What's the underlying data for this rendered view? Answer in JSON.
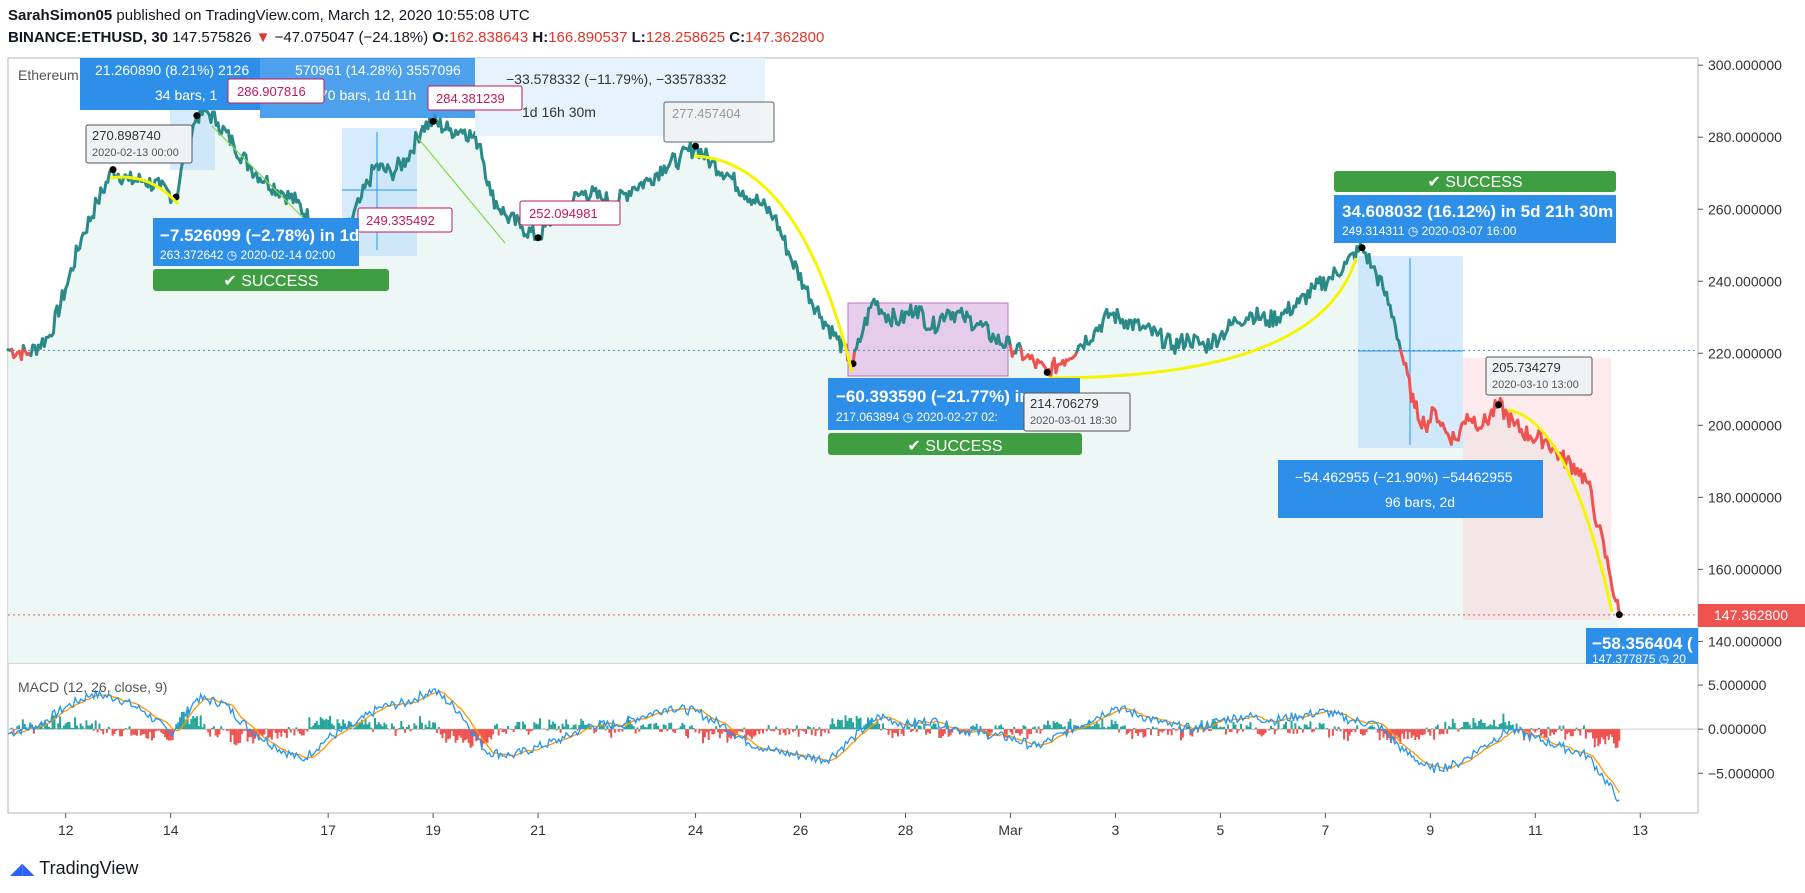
{
  "header": {
    "author": "SarahSimon05",
    "published": "published on TradingView.com, March 12, 2020 10:55:08 UTC",
    "symbol": "BINANCE:ETHUSD, 30",
    "last": "147.575826",
    "change": "−47.075047 (−24.18%)",
    "o_label": "O:",
    "o": "162.838643",
    "h_label": "H:",
    "h": "166.890537",
    "l_label": "L:",
    "l": "128.258625",
    "c_label": "C:",
    "c": "147.362800"
  },
  "pane_title": "Ethereum / U.S. Dollar, 30, BINANCE",
  "macd_label": "MACD (12, 26, close, 9)",
  "price_tag": "147.362800",
  "footer": {
    "brand": "TradingView"
  },
  "colors": {
    "price_up": "#26a69a",
    "price_down": "#ef5350",
    "price_line": "#2a8a88",
    "area_fill": "#e8f5f2",
    "macd_line": "#2196f3",
    "signal_line": "#ff9800",
    "success": "#3f9e41",
    "info_box": "#2e8fe8",
    "arrow": "#f5f500",
    "label_pink": "#c2185b"
  },
  "annotations": {
    "top_box1": "21.260890 (8.21%) 2126",
    "top_box1_sub": "34 bars, 1",
    "top_box2": "570961 (14.28%) 3557096",
    "top_box2_sub": "70 bars, 1d 11h",
    "top_box3": "−33.578332 (−11.79%), −33578332",
    "top_box3_sub": "1d 16h 30m",
    "lbl_270": "270.898740",
    "lbl_270_date": "2020-02-13 00:00",
    "lbl_286": "286.907816",
    "lbl_284": "284.381239",
    "lbl_249": "249.335492",
    "lbl_252": "252.094981",
    "lbl_277": "277.457404",
    "box1_main": "−7.526099 (−2.78%) in 1d",
    "box1_sub": "263.372642 ◷ 2020-02-14 02:00",
    "success": "✔ SUCCESS",
    "box2_main": "−60.393590 (−21.77%) in",
    "box2_sub": "217.063894 ◷ 2020-02-27 02:",
    "lbl_214": "214.706279",
    "lbl_214_date": "2020-03-01 18:30",
    "box3_main": "34.608032 (16.12%) in 5d 21h 30m",
    "box3_sub": "249.314311 ◷ 2020-03-07 16:00",
    "lbl_205": "205.734279",
    "lbl_205_date": "2020-03-10 13:00",
    "box4_main": "−54.462955 (−21.90%) −54462955",
    "box4_sub": "96 bars, 2d",
    "box5_main": "−58.356404 (",
    "box5_sub": "147.377875 ◷ 20"
  },
  "chart_data": {
    "type": "line",
    "y_ticks": [
      "300.000000",
      "280.000000",
      "260.000000",
      "240.000000",
      "220.000000",
      "200.000000",
      "180.000000",
      "160.000000",
      "140.000000"
    ],
    "y_tick_values": [
      300,
      280,
      260,
      240,
      220,
      200,
      180,
      160,
      140
    ],
    "ylim": [
      134,
      302
    ],
    "macd_ticks": [
      "5.000000",
      "0.000000",
      "−5.000000"
    ],
    "macd_tick_values": [
      5,
      0,
      -5
    ],
    "macd_ylim": [
      -9.5,
      7.5
    ],
    "x_ticks": [
      "12",
      "14",
      "17",
      "19",
      "21",
      "24",
      "26",
      "28",
      "Mar",
      "3",
      "5",
      "7",
      "9",
      "11",
      "13"
    ],
    "x_tick_pos": [
      2.0,
      4.0,
      7.0,
      9.0,
      11.0,
      14.0,
      16.0,
      18.0,
      20.0,
      22.0,
      24.0,
      26.0,
      28.0,
      30.0,
      32.0
    ],
    "xlim": [
      0.9,
      33.1
    ],
    "price_key_points": [
      [
        0.9,
        221
      ],
      [
        1.3,
        220
      ],
      [
        1.7,
        225
      ],
      [
        2.0,
        238
      ],
      [
        2.3,
        252
      ],
      [
        2.6,
        262
      ],
      [
        2.9,
        271
      ],
      [
        3.2,
        268
      ],
      [
        3.5,
        268
      ],
      [
        3.8,
        266
      ],
      [
        4.1,
        263.4
      ],
      [
        4.3,
        277
      ],
      [
        4.5,
        286
      ],
      [
        4.7,
        287
      ],
      [
        4.9,
        284
      ],
      [
        5.2,
        278
      ],
      [
        5.5,
        272
      ],
      [
        5.8,
        268
      ],
      [
        6.1,
        265
      ],
      [
        6.4,
        262
      ],
      [
        6.7,
        256
      ],
      [
        7.0,
        249.3
      ],
      [
        7.3,
        252
      ],
      [
        7.6,
        262
      ],
      [
        7.9,
        272
      ],
      [
        8.2,
        270
      ],
      [
        8.5,
        274
      ],
      [
        8.8,
        283
      ],
      [
        9.0,
        284.4
      ],
      [
        9.3,
        282
      ],
      [
        9.6,
        282
      ],
      [
        9.9,
        278
      ],
      [
        10.1,
        264
      ],
      [
        10.4,
        258
      ],
      [
        10.7,
        255
      ],
      [
        11.0,
        252.1
      ],
      [
        11.3,
        258
      ],
      [
        11.6,
        262
      ],
      [
        11.9,
        265
      ],
      [
        12.2,
        263
      ],
      [
        12.5,
        262
      ],
      [
        12.8,
        266
      ],
      [
        13.1,
        268
      ],
      [
        13.4,
        272
      ],
      [
        13.7,
        274
      ],
      [
        14.0,
        277.5
      ],
      [
        14.3,
        273
      ],
      [
        14.6,
        270
      ],
      [
        14.9,
        265
      ],
      [
        15.2,
        262
      ],
      [
        15.5,
        258
      ],
      [
        15.8,
        247
      ],
      [
        16.1,
        238
      ],
      [
        16.4,
        230
      ],
      [
        16.7,
        224
      ],
      [
        17.0,
        217.1
      ],
      [
        17.2,
        227
      ],
      [
        17.4,
        235
      ],
      [
        17.6,
        231
      ],
      [
        17.9,
        229
      ],
      [
        18.2,
        233
      ],
      [
        18.5,
        227
      ],
      [
        18.8,
        232
      ],
      [
        19.1,
        230
      ],
      [
        19.4,
        228
      ],
      [
        19.7,
        224
      ],
      [
        20.0,
        222
      ],
      [
        20.3,
        219
      ],
      [
        20.7,
        214.7
      ],
      [
        21.0,
        218
      ],
      [
        21.3,
        222
      ],
      [
        21.6,
        226
      ],
      [
        21.9,
        231
      ],
      [
        22.2,
        229
      ],
      [
        22.5,
        227
      ],
      [
        22.8,
        225
      ],
      [
        23.1,
        222
      ],
      [
        23.4,
        224
      ],
      [
        23.7,
        222
      ],
      [
        24.0,
        225
      ],
      [
        24.3,
        229
      ],
      [
        24.6,
        231
      ],
      [
        24.9,
        229
      ],
      [
        25.2,
        231
      ],
      [
        25.5,
        234
      ],
      [
        25.8,
        238
      ],
      [
        26.1,
        241
      ],
      [
        26.4,
        245
      ],
      [
        26.7,
        249.3
      ],
      [
        26.9,
        244
      ],
      [
        27.1,
        238
      ],
      [
        27.3,
        230
      ],
      [
        27.5,
        217
      ],
      [
        27.7,
        205
      ],
      [
        27.9,
        200
      ],
      [
        28.1,
        204
      ],
      [
        28.3,
        198
      ],
      [
        28.5,
        196
      ],
      [
        28.7,
        203
      ],
      [
        29.0,
        200
      ],
      [
        29.3,
        205.7
      ],
      [
        29.6,
        200
      ],
      [
        29.9,
        197
      ],
      [
        30.2,
        196
      ],
      [
        30.5,
        191
      ],
      [
        30.8,
        188
      ],
      [
        31.0,
        184
      ],
      [
        31.2,
        172
      ],
      [
        31.4,
        160
      ],
      [
        31.6,
        147.4
      ]
    ],
    "macd_key_points": [
      [
        0.9,
        -0.5
      ],
      [
        1.5,
        0.5
      ],
      [
        2.0,
        2.5
      ],
      [
        2.5,
        4.0
      ],
      [
        3.0,
        3.5
      ],
      [
        3.5,
        2.0
      ],
      [
        4.0,
        -0.5
      ],
      [
        4.5,
        3.5
      ],
      [
        5.0,
        3.0
      ],
      [
        5.5,
        0
      ],
      [
        6.0,
        -2.0
      ],
      [
        6.5,
        -3.5
      ],
      [
        7.0,
        -1.0
      ],
      [
        7.5,
        0.5
      ],
      [
        8.0,
        2.5
      ],
      [
        8.5,
        3.0
      ],
      [
        9.0,
        4.5
      ],
      [
        9.5,
        2.0
      ],
      [
        10.0,
        -2.5
      ],
      [
        10.5,
        -3.0
      ],
      [
        11.0,
        -2.0
      ],
      [
        11.5,
        -1.0
      ],
      [
        12.0,
        0.5
      ],
      [
        12.5,
        0.5
      ],
      [
        13.0,
        1.5
      ],
      [
        13.5,
        2.5
      ],
      [
        14.0,
        2.0
      ],
      [
        14.5,
        0.5
      ],
      [
        15.0,
        -1.5
      ],
      [
        15.5,
        -2.5
      ],
      [
        16.0,
        -3.0
      ],
      [
        16.5,
        -3.5
      ],
      [
        17.0,
        -1.0
      ],
      [
        17.5,
        1.5
      ],
      [
        18.0,
        0.5
      ],
      [
        18.5,
        1.0
      ],
      [
        19.0,
        0
      ],
      [
        19.5,
        -0.5
      ],
      [
        20.0,
        -1.0
      ],
      [
        20.5,
        -2.0
      ],
      [
        21.0,
        -0.5
      ],
      [
        21.5,
        1.0
      ],
      [
        22.0,
        2.5
      ],
      [
        22.5,
        1.5
      ],
      [
        23.0,
        0.5
      ],
      [
        23.5,
        0
      ],
      [
        24.0,
        1.0
      ],
      [
        24.5,
        1.5
      ],
      [
        25.0,
        1.0
      ],
      [
        25.5,
        1.5
      ],
      [
        26.0,
        2.0
      ],
      [
        26.5,
        1.0
      ],
      [
        27.0,
        0.5
      ],
      [
        27.5,
        -2.5
      ],
      [
        28.0,
        -4.5
      ],
      [
        28.5,
        -4.0
      ],
      [
        29.0,
        -2.0
      ],
      [
        29.5,
        0
      ],
      [
        30.0,
        -1.0
      ],
      [
        30.5,
        -2.0
      ],
      [
        31.0,
        -3.0
      ],
      [
        31.3,
        -5.5
      ],
      [
        31.6,
        -8.0
      ]
    ],
    "last_value": 147.3628,
    "reference_level": 220.8
  }
}
